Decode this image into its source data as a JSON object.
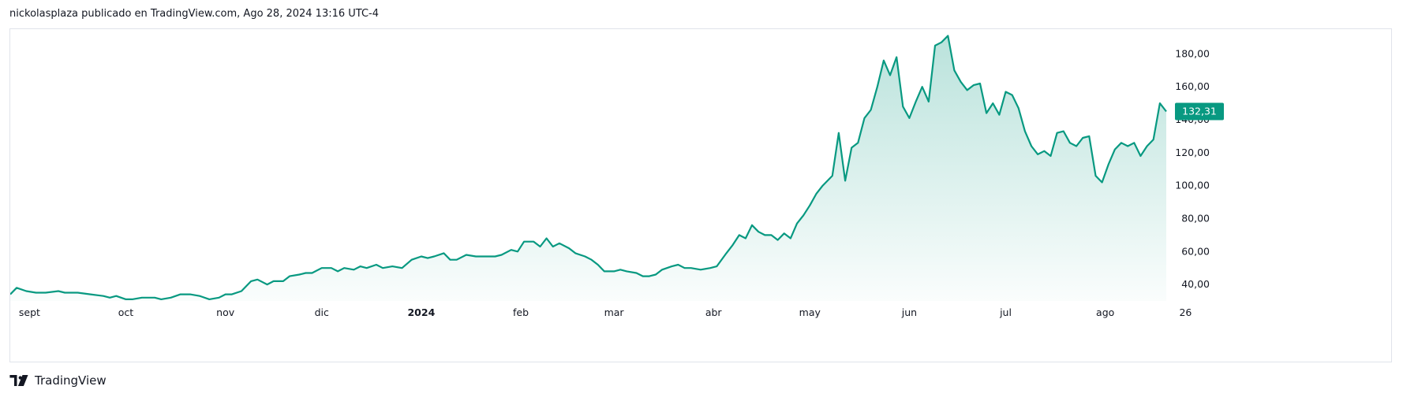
{
  "header": {
    "text": "nickolasplaza publicado en TradingView.com, Ago 28, 2024 13:16 UTC-4"
  },
  "footer": {
    "brand": "TradingView",
    "logo_icon": "tradingview-logo-icon"
  },
  "colors": {
    "line": "#089981",
    "fill_top": "#089981",
    "grid": "#f0f3fa",
    "label_bg": "#089981",
    "text": "#131722"
  },
  "chart_data": {
    "type": "area",
    "title": "",
    "xlabel": "",
    "ylabel": "",
    "ylim": [
      30,
      195
    ],
    "grid": false,
    "y_ticks": [
      "40,00",
      "60,00",
      "80,00",
      "100,00",
      "120,00",
      "140,00",
      "160,00",
      "180,00"
    ],
    "y_tick_values": [
      40,
      60,
      80,
      100,
      120,
      140,
      160,
      180
    ],
    "x_ticks": [
      {
        "label": "sept",
        "date": "2023-09-01",
        "bold": false
      },
      {
        "label": "oct",
        "date": "2023-10-01",
        "bold": false
      },
      {
        "label": "nov",
        "date": "2023-11-01",
        "bold": false
      },
      {
        "label": "dic",
        "date": "2023-12-01",
        "bold": false
      },
      {
        "label": "2024",
        "date": "2024-01-01",
        "bold": true
      },
      {
        "label": "feb",
        "date": "2024-02-01",
        "bold": false
      },
      {
        "label": "mar",
        "date": "2024-03-01",
        "bold": false
      },
      {
        "label": "abr",
        "date": "2024-04-01",
        "bold": false
      },
      {
        "label": "may",
        "date": "2024-05-01",
        "bold": false
      },
      {
        "label": "jun",
        "date": "2024-06-01",
        "bold": false
      },
      {
        "label": "jul",
        "date": "2024-07-01",
        "bold": false
      },
      {
        "label": "ago",
        "date": "2024-08-01",
        "bold": false
      },
      {
        "label": "26",
        "date": "2024-08-26",
        "bold": false
      }
    ],
    "last_value_label": "132,31",
    "series": [
      {
        "values": [
          [
            "2023-08-26",
            34
          ],
          [
            "2023-08-28",
            38
          ],
          [
            "2023-08-31",
            36
          ],
          [
            "2023-09-03",
            35
          ],
          [
            "2023-09-06",
            35
          ],
          [
            "2023-09-10",
            36
          ],
          [
            "2023-09-12",
            35
          ],
          [
            "2023-09-16",
            35
          ],
          [
            "2023-09-20",
            34
          ],
          [
            "2023-09-24",
            33
          ],
          [
            "2023-09-26",
            32
          ],
          [
            "2023-09-28",
            33
          ],
          [
            "2023-10-01",
            31
          ],
          [
            "2023-10-03",
            31
          ],
          [
            "2023-10-06",
            32
          ],
          [
            "2023-10-10",
            32
          ],
          [
            "2023-10-12",
            31
          ],
          [
            "2023-10-15",
            32
          ],
          [
            "2023-10-18",
            34
          ],
          [
            "2023-10-21",
            34
          ],
          [
            "2023-10-24",
            33
          ],
          [
            "2023-10-27",
            31
          ],
          [
            "2023-10-30",
            32
          ],
          [
            "2023-11-01",
            34
          ],
          [
            "2023-11-03",
            34
          ],
          [
            "2023-11-06",
            36
          ],
          [
            "2023-11-09",
            42
          ],
          [
            "2023-11-11",
            43
          ],
          [
            "2023-11-14",
            40
          ],
          [
            "2023-11-16",
            42
          ],
          [
            "2023-11-19",
            42
          ],
          [
            "2023-11-21",
            45
          ],
          [
            "2023-11-24",
            46
          ],
          [
            "2023-11-26",
            47
          ],
          [
            "2023-11-28",
            47
          ],
          [
            "2023-12-01",
            50
          ],
          [
            "2023-12-04",
            50
          ],
          [
            "2023-12-06",
            48
          ],
          [
            "2023-12-08",
            50
          ],
          [
            "2023-12-11",
            49
          ],
          [
            "2023-12-13",
            51
          ],
          [
            "2023-12-15",
            50
          ],
          [
            "2023-12-18",
            52
          ],
          [
            "2023-12-20",
            50
          ],
          [
            "2023-12-23",
            51
          ],
          [
            "2023-12-26",
            50
          ],
          [
            "2023-12-29",
            55
          ],
          [
            "2024-01-01",
            57
          ],
          [
            "2024-01-03",
            56
          ],
          [
            "2024-01-05",
            57
          ],
          [
            "2024-01-08",
            59
          ],
          [
            "2024-01-10",
            55
          ],
          [
            "2024-01-12",
            55
          ],
          [
            "2024-01-15",
            58
          ],
          [
            "2024-01-18",
            57
          ],
          [
            "2024-01-21",
            57
          ],
          [
            "2024-01-24",
            57
          ],
          [
            "2024-01-26",
            58
          ],
          [
            "2024-01-29",
            61
          ],
          [
            "2024-01-31",
            60
          ],
          [
            "2024-02-02",
            66
          ],
          [
            "2024-02-05",
            66
          ],
          [
            "2024-02-07",
            63
          ],
          [
            "2024-02-09",
            68
          ],
          [
            "2024-02-11",
            63
          ],
          [
            "2024-02-13",
            65
          ],
          [
            "2024-02-16",
            62
          ],
          [
            "2024-02-18",
            59
          ],
          [
            "2024-02-21",
            57
          ],
          [
            "2024-02-23",
            55
          ],
          [
            "2024-02-25",
            52
          ],
          [
            "2024-02-27",
            48
          ],
          [
            "2024-03-01",
            48
          ],
          [
            "2024-03-03",
            49
          ],
          [
            "2024-03-05",
            48
          ],
          [
            "2024-03-08",
            47
          ],
          [
            "2024-03-10",
            45
          ],
          [
            "2024-03-12",
            45
          ],
          [
            "2024-03-14",
            46
          ],
          [
            "2024-03-16",
            49
          ],
          [
            "2024-03-19",
            51
          ],
          [
            "2024-03-21",
            52
          ],
          [
            "2024-03-23",
            50
          ],
          [
            "2024-03-25",
            50
          ],
          [
            "2024-03-28",
            49
          ],
          [
            "2024-03-31",
            50
          ],
          [
            "2024-04-02",
            51
          ],
          [
            "2024-04-05",
            59
          ],
          [
            "2024-04-07",
            64
          ],
          [
            "2024-04-09",
            70
          ],
          [
            "2024-04-11",
            68
          ],
          [
            "2024-04-13",
            76
          ],
          [
            "2024-04-15",
            72
          ],
          [
            "2024-04-17",
            70
          ],
          [
            "2024-04-19",
            70
          ],
          [
            "2024-04-21",
            67
          ],
          [
            "2024-04-23",
            71
          ],
          [
            "2024-04-25",
            68
          ],
          [
            "2024-04-27",
            77
          ],
          [
            "2024-04-29",
            82
          ],
          [
            "2024-05-01",
            88
          ],
          [
            "2024-05-03",
            95
          ],
          [
            "2024-05-05",
            100
          ],
          [
            "2024-05-08",
            106
          ],
          [
            "2024-05-10",
            132
          ],
          [
            "2024-05-12",
            103
          ],
          [
            "2024-05-14",
            123
          ],
          [
            "2024-05-16",
            126
          ],
          [
            "2024-05-18",
            141
          ],
          [
            "2024-05-20",
            146
          ],
          [
            "2024-05-22",
            160
          ],
          [
            "2024-05-24",
            176
          ],
          [
            "2024-05-26",
            167
          ],
          [
            "2024-05-28",
            178
          ],
          [
            "2024-05-30",
            148
          ],
          [
            "2024-06-01",
            141
          ],
          [
            "2024-06-03",
            151
          ],
          [
            "2024-06-05",
            160
          ],
          [
            "2024-06-07",
            151
          ],
          [
            "2024-06-09",
            185
          ],
          [
            "2024-06-11",
            187
          ],
          [
            "2024-06-13",
            191
          ],
          [
            "2024-06-15",
            170
          ],
          [
            "2024-06-17",
            163
          ],
          [
            "2024-06-19",
            158
          ],
          [
            "2024-06-21",
            161
          ],
          [
            "2024-06-23",
            162
          ],
          [
            "2024-06-25",
            144
          ],
          [
            "2024-06-27",
            150
          ],
          [
            "2024-06-29",
            143
          ],
          [
            "2024-07-01",
            157
          ],
          [
            "2024-07-03",
            155
          ],
          [
            "2024-07-05",
            147
          ],
          [
            "2024-07-07",
            133
          ],
          [
            "2024-07-09",
            124
          ],
          [
            "2024-07-11",
            119
          ],
          [
            "2024-07-13",
            121
          ],
          [
            "2024-07-15",
            118
          ],
          [
            "2024-07-17",
            132
          ],
          [
            "2024-07-19",
            133
          ],
          [
            "2024-07-21",
            126
          ],
          [
            "2024-07-23",
            124
          ],
          [
            "2024-07-25",
            129
          ],
          [
            "2024-07-27",
            130
          ],
          [
            "2024-07-29",
            106
          ],
          [
            "2024-07-31",
            102
          ],
          [
            "2024-08-02",
            113
          ],
          [
            "2024-08-04",
            122
          ],
          [
            "2024-08-06",
            126
          ],
          [
            "2024-08-08",
            124
          ],
          [
            "2024-08-10",
            126
          ],
          [
            "2024-08-12",
            118
          ],
          [
            "2024-08-14",
            124
          ],
          [
            "2024-08-16",
            128
          ],
          [
            "2024-08-18",
            150
          ],
          [
            "2024-08-20",
            145
          ]
        ]
      }
    ]
  }
}
